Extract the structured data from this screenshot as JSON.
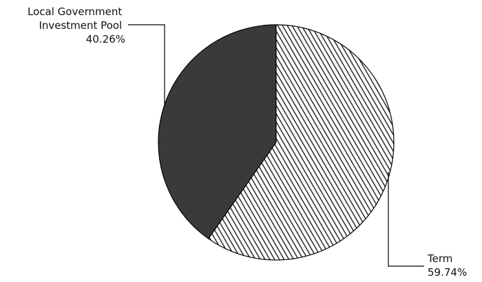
{
  "chart_data": {
    "type": "pie",
    "title": "",
    "slices": [
      {
        "label_lines": [
          "Local Government",
          "Investment Pool"
        ],
        "value_label": "40.26%",
        "value": 40.26,
        "pattern": "solid",
        "color": "#3a3a3a"
      },
      {
        "label_lines": [
          "Term"
        ],
        "value_label": "59.74%",
        "value": 59.74,
        "pattern": "diagonal-hatch",
        "color": "#2a2a2a"
      }
    ]
  }
}
